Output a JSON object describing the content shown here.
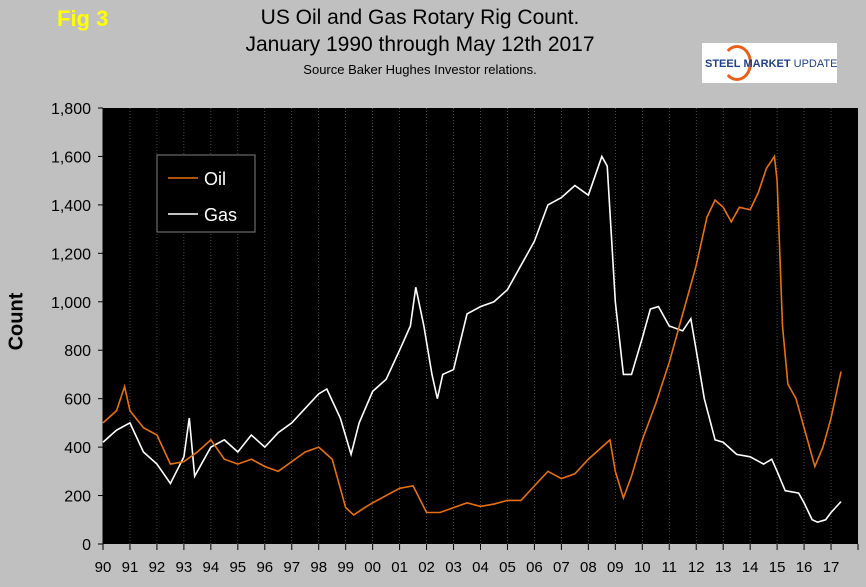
{
  "header": {
    "fig": "Fig 3",
    "title_line1": "US Oil and Gas Rotary Rig Count.",
    "title_line2": "January 1990 through May 12th 2017",
    "source": "Source Baker Hughes Investor relations.",
    "logo": "STEEL MARKET UPDATE"
  },
  "colors": {
    "oil": "#e8700f",
    "gas": "#ffffff",
    "plot_bg": "#000000",
    "page_bg": "#c0c0c0",
    "fig": "#ffff00"
  },
  "chart_data": {
    "type": "line",
    "title": "US Oil and Gas Rotary Rig Count. January 1990 through May 12th 2017",
    "xlabel": "",
    "ylabel": "Count",
    "ylim": [
      0,
      1800
    ],
    "xlim": [
      1990,
      2018
    ],
    "yticks": [
      "0",
      "200",
      "400",
      "600",
      "800",
      "1,000",
      "1,200",
      "1,400",
      "1,600",
      "1,800"
    ],
    "xticks": [
      "90",
      "91",
      "92",
      "93",
      "94",
      "95",
      "96",
      "97",
      "98",
      "99",
      "00",
      "01",
      "02",
      "03",
      "04",
      "05",
      "06",
      "07",
      "08",
      "09",
      "10",
      "11",
      "12",
      "13",
      "14",
      "15",
      "16",
      "17"
    ],
    "legend": {
      "placement": "top-left",
      "entries": [
        "Oil",
        "Gas"
      ]
    },
    "grid": "vertical dashed",
    "series": [
      {
        "name": "Oil",
        "x": [
          1990,
          1990.5,
          1990.8,
          1991,
          1991.5,
          1992,
          1992.5,
          1993,
          1993.5,
          1994,
          1994.5,
          1995,
          1995.5,
          1996,
          1996.5,
          1997,
          1997.5,
          1998,
          1998.5,
          1999,
          1999.3,
          1999.7,
          2000,
          2000.5,
          2001,
          2001.5,
          2002,
          2002.5,
          2003,
          2003.5,
          2004,
          2004.5,
          2005,
          2005.5,
          2006,
          2006.5,
          2007,
          2007.5,
          2008,
          2008.5,
          2008.8,
          2009,
          2009.3,
          2009.6,
          2010,
          2010.5,
          2011,
          2011.5,
          2012,
          2012.4,
          2012.7,
          2013,
          2013.3,
          2013.6,
          2014,
          2014.3,
          2014.6,
          2014.9,
          2015,
          2015.2,
          2015.4,
          2015.7,
          2016,
          2016.4,
          2016.7,
          2017,
          2017.37
        ],
        "values": [
          500,
          550,
          650,
          550,
          480,
          450,
          330,
          340,
          380,
          430,
          350,
          330,
          350,
          320,
          300,
          340,
          380,
          400,
          350,
          150,
          120,
          150,
          170,
          200,
          230,
          240,
          130,
          130,
          150,
          170,
          155,
          165,
          180,
          180,
          240,
          300,
          270,
          290,
          350,
          400,
          430,
          300,
          190,
          280,
          430,
          580,
          750,
          950,
          1150,
          1350,
          1420,
          1390,
          1330,
          1390,
          1380,
          1450,
          1550,
          1600,
          1500,
          900,
          660,
          600,
          480,
          320,
          400,
          520,
          712
        ]
      },
      {
        "name": "Gas",
        "x": [
          1990,
          1990.5,
          1991,
          1991.5,
          1992,
          1992.5,
          1993,
          1993.2,
          1993.4,
          1994,
          1994.5,
          1995,
          1995.5,
          1996,
          1996.5,
          1997,
          1997.5,
          1998,
          1998.3,
          1998.8,
          1999.2,
          1999.5,
          2000,
          2000.5,
          2001,
          2001.4,
          2001.6,
          2001.9,
          2002.2,
          2002.4,
          2002.6,
          2003,
          2003.5,
          2004,
          2004.5,
          2005,
          2005.5,
          2006,
          2006.5,
          2007,
          2007.5,
          2008,
          2008.5,
          2008.7,
          2009,
          2009.3,
          2009.6,
          2010,
          2010.3,
          2010.6,
          2011,
          2011.5,
          2011.8,
          2012,
          2012.3,
          2012.7,
          2013,
          2013.5,
          2014,
          2014.5,
          2014.8,
          2015,
          2015.3,
          2015.8,
          2016,
          2016.3,
          2016.5,
          2016.8,
          2017,
          2017.37
        ],
        "values": [
          420,
          470,
          500,
          380,
          330,
          250,
          360,
          520,
          280,
          400,
          430,
          380,
          450,
          400,
          460,
          500,
          560,
          620,
          640,
          520,
          370,
          500,
          630,
          680,
          800,
          900,
          1060,
          900,
          700,
          600,
          700,
          720,
          950,
          980,
          1000,
          1050,
          1150,
          1250,
          1400,
          1430,
          1480,
          1440,
          1600,
          1560,
          1000,
          700,
          700,
          850,
          970,
          980,
          900,
          880,
          930,
          800,
          600,
          430,
          420,
          370,
          360,
          330,
          350,
          300,
          220,
          210,
          170,
          100,
          90,
          100,
          130,
          175
        ]
      }
    ]
  }
}
